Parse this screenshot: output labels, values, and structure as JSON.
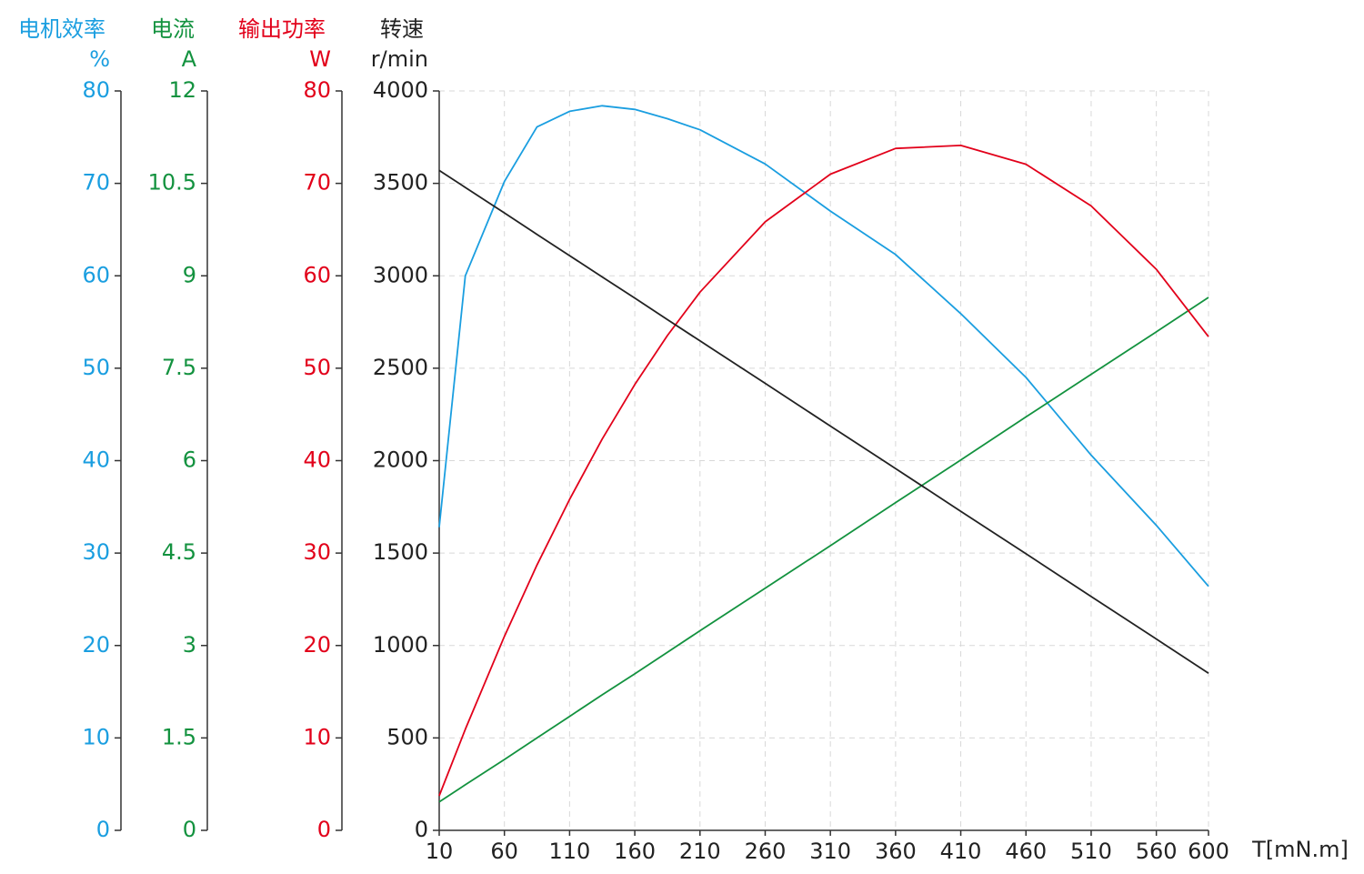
{
  "chart_data": {
    "type": "line",
    "x_label": "T[mN.m]",
    "xlim": [
      10,
      600
    ],
    "xticks": [
      10,
      60,
      110,
      160,
      210,
      260,
      310,
      360,
      410,
      460,
      510,
      560,
      600
    ],
    "grid": true,
    "y_axes": [
      {
        "title": "电机效率",
        "unit": "%",
        "color": "#1a9ee0",
        "lim": [
          0,
          80
        ],
        "ticks": [
          0,
          10,
          20,
          30,
          40,
          50,
          60,
          70,
          80
        ]
      },
      {
        "title": "电流",
        "unit": "A",
        "color": "#13923f",
        "lim": [
          0,
          12
        ],
        "ticks": [
          0,
          1.5,
          3,
          4.5,
          6,
          7.5,
          9,
          10.5,
          12
        ]
      },
      {
        "title": "输出功率",
        "unit": "W",
        "color": "#e2001a",
        "lim": [
          0,
          80
        ],
        "ticks": [
          0,
          10,
          20,
          30,
          40,
          50,
          60,
          70,
          80
        ]
      },
      {
        "title": "转速",
        "unit": "r/min",
        "color": "#222222",
        "lim": [
          0,
          4000
        ],
        "ticks": [
          0,
          500,
          1000,
          1500,
          2000,
          2500,
          3000,
          3500,
          4000
        ]
      }
    ],
    "x": [
      10,
      30,
      60,
      85,
      110,
      135,
      160,
      185,
      210,
      260,
      310,
      360,
      410,
      460,
      510,
      560,
      600
    ],
    "series": [
      {
        "axis": 0,
        "color": "#1a9ee0",
        "values": [
          32.8,
          60,
          70.2,
          76.1,
          77.8,
          78.4,
          78.0,
          77.0,
          75.8,
          72.1,
          67.0,
          62.3,
          55.9,
          49.0,
          40.6,
          33.0,
          26.4
        ]
      },
      {
        "axis": 1,
        "color": "#13923f",
        "values": [
          0.46,
          0.74,
          1.15,
          1.5,
          1.85,
          2.2,
          2.54,
          2.89,
          3.24,
          3.93,
          4.62,
          5.32,
          6.01,
          6.71,
          7.4,
          8.09,
          8.65
        ]
      },
      {
        "axis": 2,
        "color": "#e2001a",
        "values": [
          3.74,
          10.93,
          20.99,
          28.7,
          35.81,
          42.33,
          48.24,
          53.53,
          58.23,
          65.84,
          71.0,
          73.78,
          74.11,
          72.07,
          67.56,
          60.7,
          53.41
        ]
      },
      {
        "axis": 3,
        "color": "#222222",
        "values": [
          3570,
          3478,
          3340,
          3224,
          3109,
          2994,
          2879,
          2763,
          2648,
          2418,
          2187,
          1957,
          1726,
          1496,
          1265,
          1035,
          850
        ]
      }
    ]
  }
}
